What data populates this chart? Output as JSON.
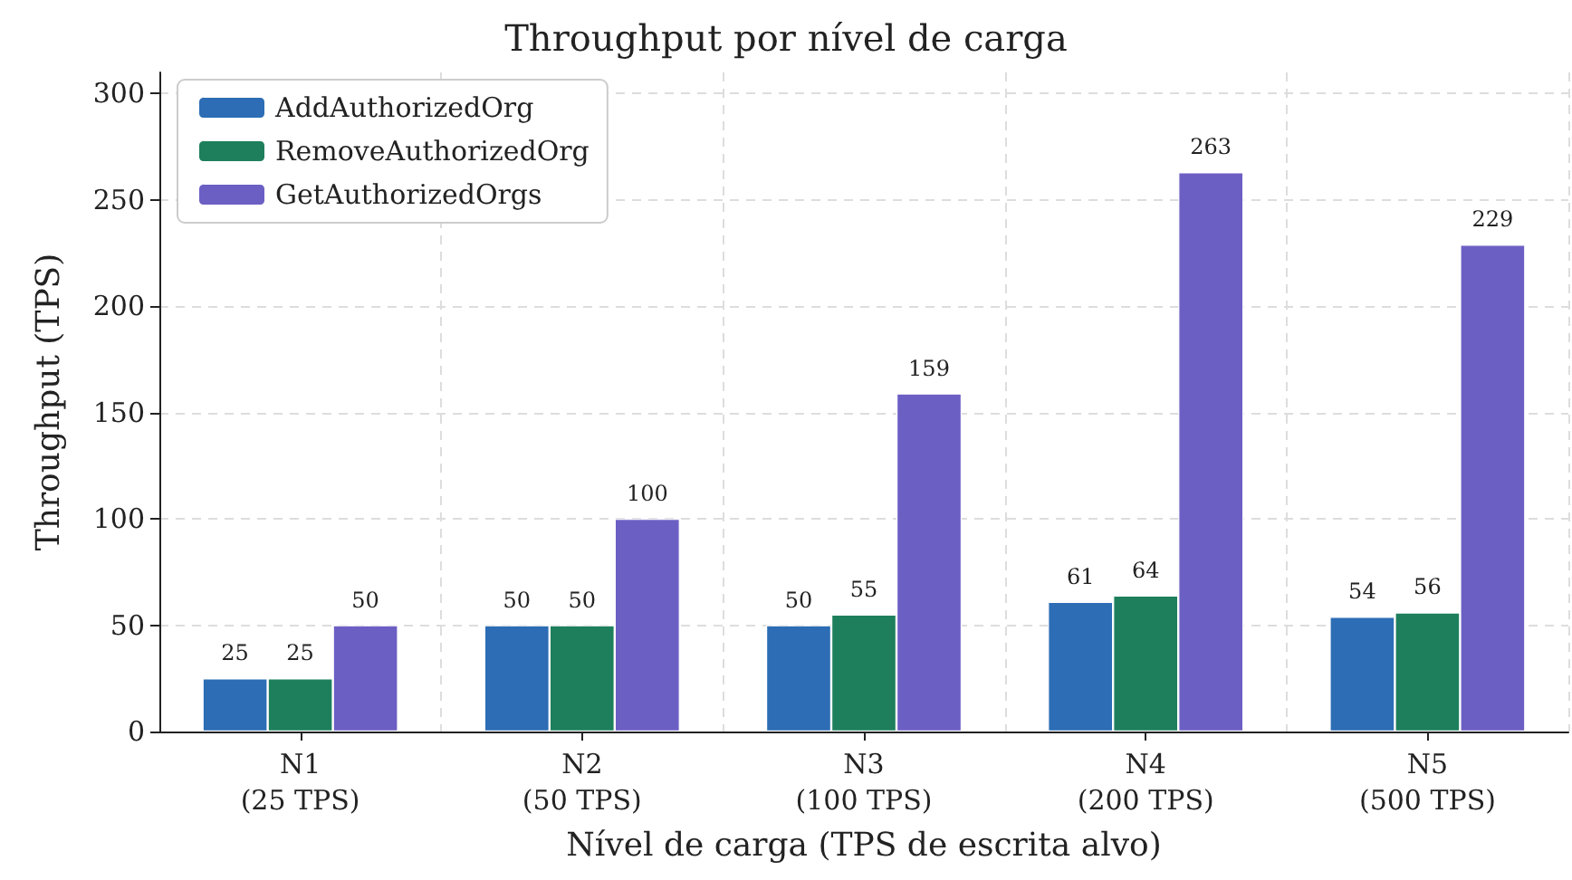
{
  "chart_data": {
    "type": "bar",
    "title": "Throughput por nível de carga",
    "xlabel": "Nível de carga (TPS de escrita alvo)",
    "ylabel": "Throughput (TPS)",
    "categories": [
      "N1\n(25 TPS)",
      "N2\n(50 TPS)",
      "N3\n(100 TPS)",
      "N4\n(200 TPS)",
      "N5\n(500 TPS)"
    ],
    "series": [
      {
        "name": "AddAuthorizedOrg",
        "color": "#2c6db5",
        "values": [
          25,
          50,
          50,
          61,
          54
        ]
      },
      {
        "name": "RemoveAuthorizedOrg",
        "color": "#1e7f5c",
        "values": [
          25,
          50,
          55,
          64,
          56
        ]
      },
      {
        "name": "GetAuthorizedOrgs",
        "color": "#6b5fc4",
        "values": [
          50,
          100,
          159,
          263,
          229
        ]
      }
    ],
    "ylim": [
      0,
      310
    ],
    "yticks": [
      0,
      50,
      100,
      150,
      200,
      250,
      300
    ],
    "grid": true,
    "legend": "top left",
    "data_labels": true
  }
}
